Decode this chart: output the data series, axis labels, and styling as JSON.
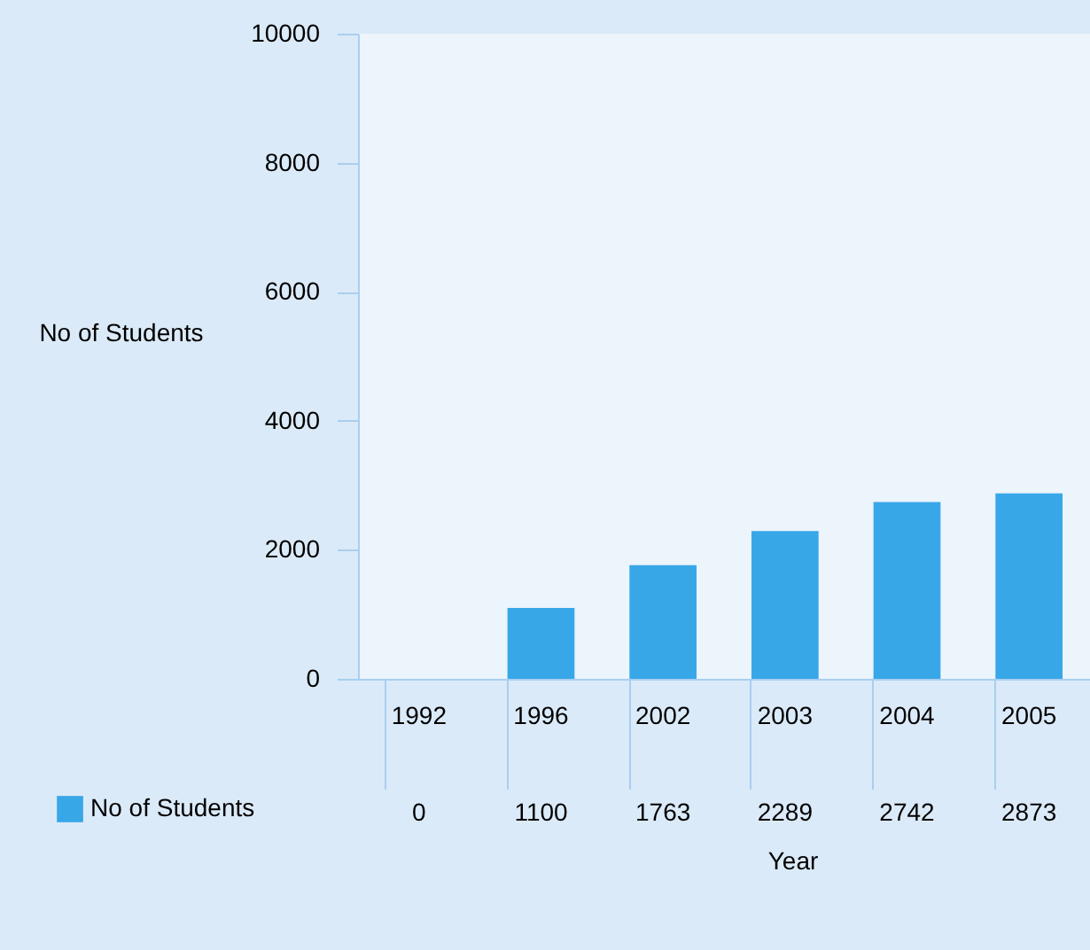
{
  "chart_data": {
    "type": "bar",
    "xlabel": "Year",
    "ylabel": "No of Students",
    "categories": [
      "1992",
      "1996",
      "2002",
      "2003",
      "2004",
      "2005"
    ],
    "series": [
      {
        "name": "No of Students",
        "color": "#38a7e8",
        "values": [
          0,
          1100,
          1763,
          2289,
          2742,
          2873
        ]
      }
    ],
    "ylim": [
      0,
      10000
    ],
    "yticks": [
      0,
      2000,
      4000,
      6000,
      8000,
      10000
    ],
    "grid": false,
    "legend": "bottom left",
    "data_labels": true
  }
}
